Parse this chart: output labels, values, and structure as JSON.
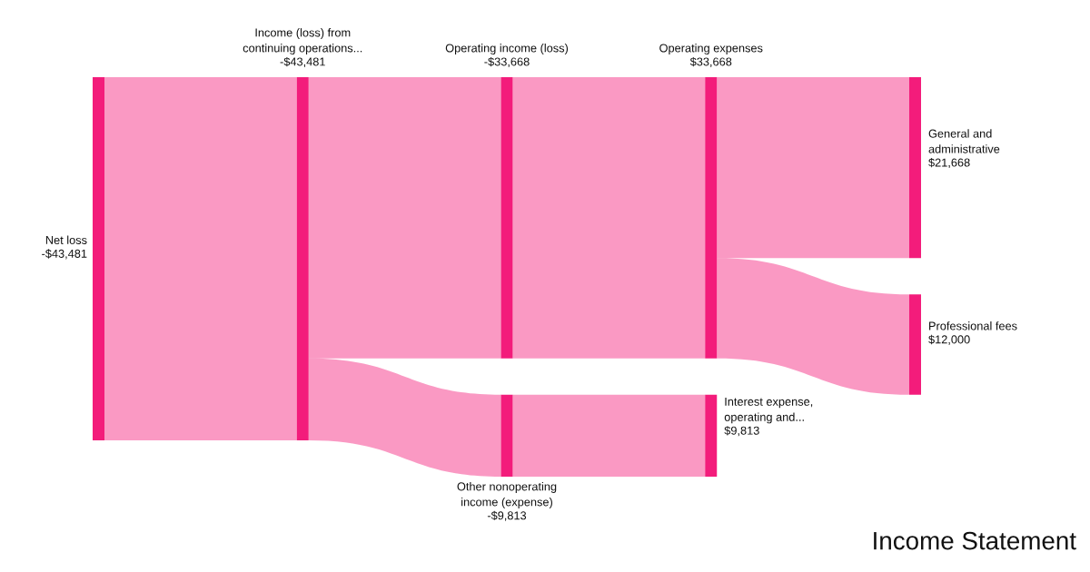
{
  "chart_data": {
    "type": "other",
    "title": "Income Statement",
    "color": "#f31c7b",
    "categories": [
      "Net loss",
      "Income (loss) from\ncontinuing operations...",
      "Operating income (loss)",
      "Other nonoperating\nincome (expense)",
      "Operating expenses",
      "Interest expense,\noperating and...",
      "General and\nadministrative",
      "Professional fees"
    ],
    "values": [
      -43481,
      -43481,
      -33668,
      -9813,
      33668,
      9813,
      21668,
      12000
    ],
    "value_labels": [
      "-$43,481",
      "-$43,481",
      "-$33,668",
      "-$9,813",
      "$33,668",
      "$9,813",
      "$21,668",
      "$12,000"
    ]
  }
}
